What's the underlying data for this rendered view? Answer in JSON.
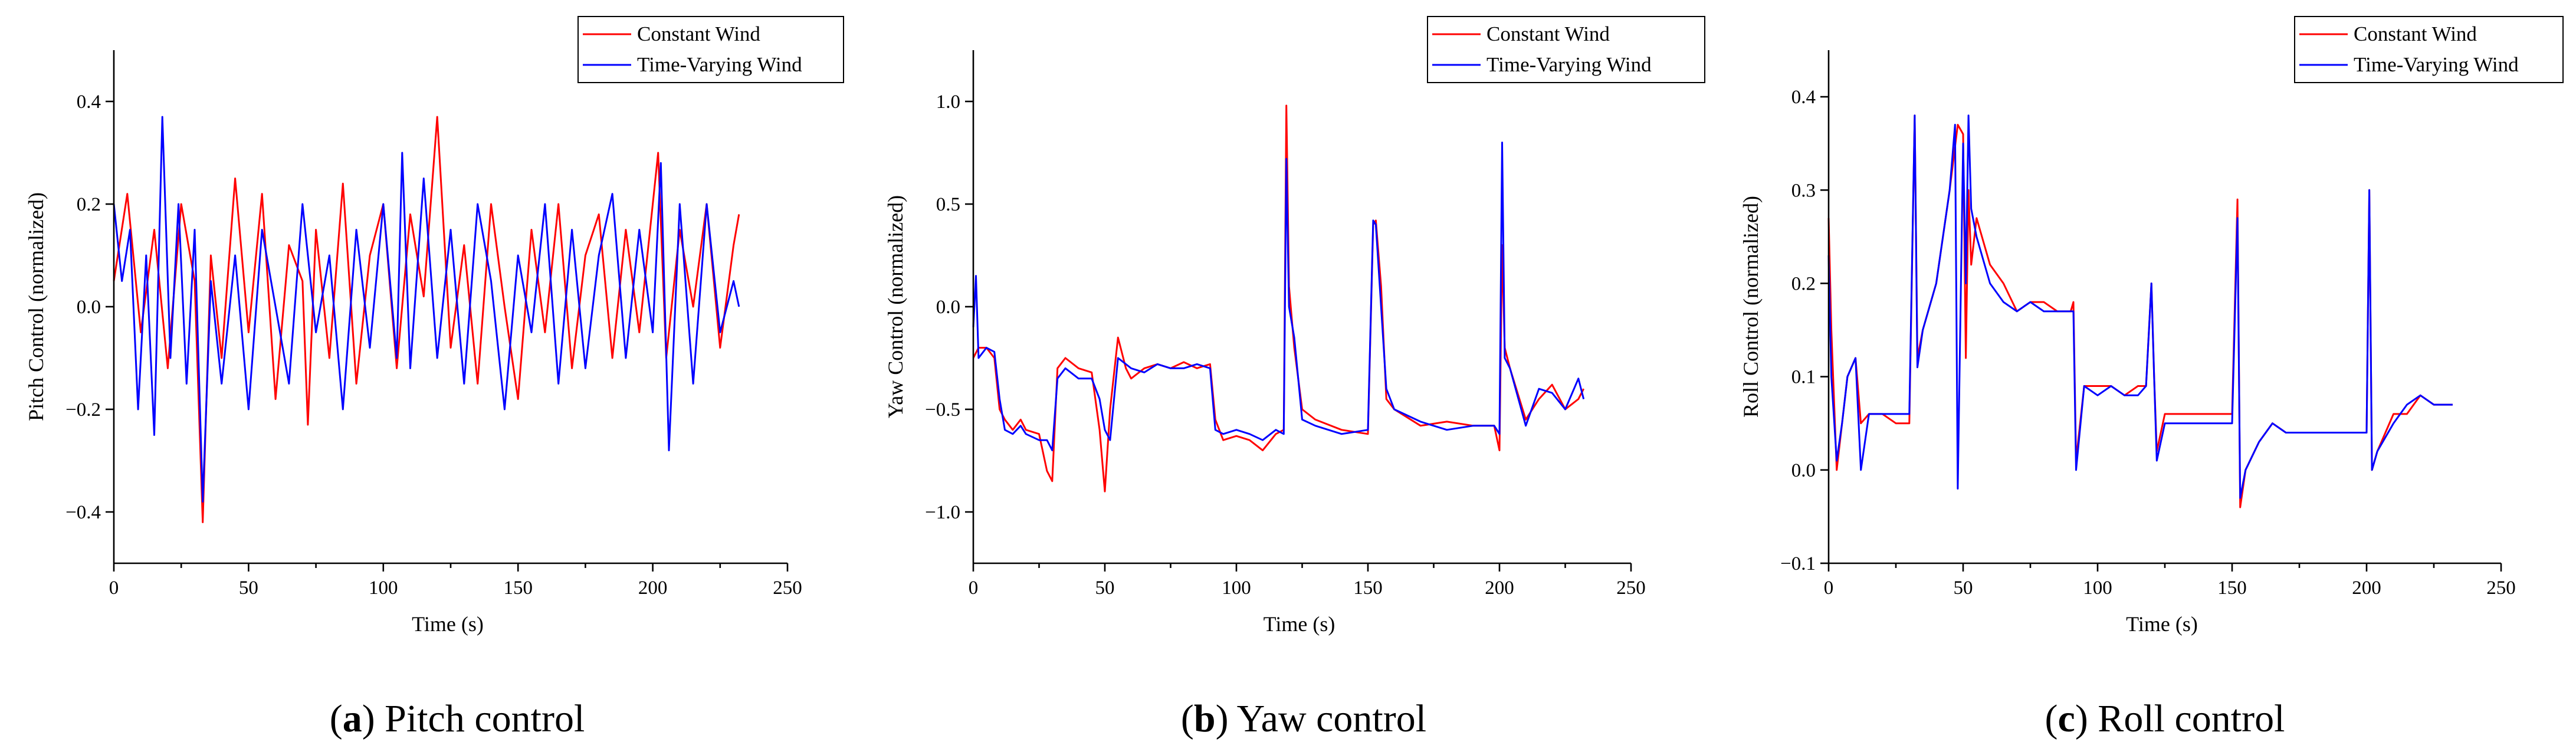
{
  "colors": {
    "constant": "#ff0000",
    "varying": "#0000ff"
  },
  "legend": [
    "Constant Wind",
    "Time-Varying Wind"
  ],
  "panels": [
    {
      "letter": "a",
      "caption_text": "Pitch control"
    },
    {
      "letter": "b",
      "caption_text": "Yaw control"
    },
    {
      "letter": "c",
      "caption_text": "Roll control"
    }
  ],
  "chart_data": [
    {
      "type": "line",
      "xlabel": "Time (s)",
      "ylabel": "Pitch Control (normalized)",
      "xlim": [
        0,
        250
      ],
      "ylim": [
        -0.5,
        0.5
      ],
      "xticks": [
        0,
        50,
        100,
        150,
        200,
        250
      ],
      "yticks": [
        -0.4,
        -0.2,
        0.0,
        0.2,
        0.4
      ],
      "ytick_labels": [
        "−0.4",
        "−0.2",
        "0.0",
        "0.2",
        "0.4"
      ],
      "legend_position": "top-right",
      "series": [
        {
          "name": "Constant Wind",
          "x": [
            0,
            5,
            10,
            15,
            20,
            25,
            30,
            33,
            36,
            40,
            45,
            50,
            55,
            60,
            65,
            70,
            72,
            75,
            80,
            85,
            90,
            95,
            100,
            105,
            110,
            115,
            120,
            125,
            130,
            135,
            140,
            145,
            150,
            155,
            160,
            165,
            170,
            175,
            180,
            185,
            190,
            195,
            200,
            202,
            205,
            210,
            215,
            220,
            225,
            230,
            232
          ],
          "y": [
            0.05,
            0.22,
            -0.05,
            0.15,
            -0.12,
            0.2,
            0.05,
            -0.42,
            0.1,
            -0.1,
            0.25,
            -0.05,
            0.22,
            -0.18,
            0.12,
            0.05,
            -0.23,
            0.15,
            -0.1,
            0.24,
            -0.15,
            0.1,
            0.2,
            -0.12,
            0.18,
            0.02,
            0.37,
            -0.08,
            0.12,
            -0.15,
            0.2,
            0.0,
            -0.18,
            0.15,
            -0.05,
            0.2,
            -0.12,
            0.1,
            0.18,
            -0.1,
            0.15,
            -0.05,
            0.2,
            0.3,
            -0.1,
            0.15,
            0.0,
            0.2,
            -0.08,
            0.12,
            0.18
          ]
        },
        {
          "name": "Time-Varying Wind",
          "x": [
            0,
            3,
            6,
            9,
            12,
            15,
            18,
            21,
            24,
            27,
            30,
            33,
            36,
            40,
            45,
            50,
            55,
            60,
            65,
            70,
            75,
            80,
            85,
            90,
            95,
            100,
            105,
            107,
            110,
            115,
            120,
            125,
            130,
            135,
            140,
            145,
            150,
            155,
            160,
            165,
            170,
            175,
            180,
            185,
            190,
            195,
            200,
            203,
            206,
            210,
            215,
            220,
            225,
            230,
            232
          ],
          "y": [
            0.2,
            0.05,
            0.15,
            -0.2,
            0.1,
            -0.25,
            0.37,
            -0.1,
            0.2,
            -0.15,
            0.15,
            -0.38,
            0.05,
            -0.15,
            0.1,
            -0.2,
            0.15,
            0.0,
            -0.15,
            0.2,
            -0.05,
            0.1,
            -0.2,
            0.15,
            -0.08,
            0.2,
            -0.1,
            0.3,
            -0.12,
            0.25,
            -0.1,
            0.15,
            -0.15,
            0.2,
            0.05,
            -0.2,
            0.1,
            -0.05,
            0.2,
            -0.15,
            0.15,
            -0.12,
            0.1,
            0.22,
            -0.1,
            0.15,
            -0.05,
            0.28,
            -0.28,
            0.2,
            -0.15,
            0.2,
            -0.05,
            0.05,
            0.0
          ]
        }
      ]
    },
    {
      "type": "line",
      "xlabel": "Time (s)",
      "ylabel": "Yaw Control (normalized)",
      "xlim": [
        0,
        250
      ],
      "ylim": [
        -1.25,
        1.25
      ],
      "xticks": [
        0,
        50,
        100,
        150,
        200,
        250
      ],
      "yticks": [
        -1.0,
        -0.5,
        0.0,
        0.5,
        1.0
      ],
      "ytick_labels": [
        "−1.0",
        "−0.5",
        "0.0",
        "0.5",
        "1.0"
      ],
      "legend_position": "top-right",
      "series": [
        {
          "name": "Constant Wind",
          "x": [
            0,
            2,
            5,
            8,
            10,
            12,
            15,
            18,
            20,
            25,
            28,
            30,
            32,
            35,
            40,
            45,
            48,
            50,
            52,
            55,
            58,
            60,
            65,
            70,
            75,
            80,
            85,
            90,
            92,
            95,
            100,
            105,
            110,
            115,
            118,
            119,
            120,
            122,
            125,
            130,
            140,
            150,
            152,
            153,
            155,
            157,
            160,
            170,
            180,
            190,
            198,
            200,
            201,
            202,
            204,
            210,
            215,
            220,
            225,
            230,
            232
          ],
          "y": [
            -0.25,
            -0.2,
            -0.2,
            -0.25,
            -0.5,
            -0.55,
            -0.6,
            -0.55,
            -0.6,
            -0.62,
            -0.8,
            -0.85,
            -0.3,
            -0.25,
            -0.3,
            -0.32,
            -0.6,
            -0.9,
            -0.5,
            -0.15,
            -0.3,
            -0.35,
            -0.3,
            -0.28,
            -0.3,
            -0.27,
            -0.3,
            -0.28,
            -0.55,
            -0.65,
            -0.63,
            -0.65,
            -0.7,
            -0.62,
            -0.6,
            0.98,
            0.1,
            -0.2,
            -0.5,
            -0.55,
            -0.6,
            -0.62,
            0.4,
            0.42,
            0.1,
            -0.45,
            -0.5,
            -0.58,
            -0.56,
            -0.58,
            -0.58,
            -0.7,
            0.3,
            -0.2,
            -0.3,
            -0.55,
            -0.45,
            -0.38,
            -0.5,
            -0.45,
            -0.4
          ]
        },
        {
          "name": "Time-Varying Wind",
          "x": [
            0,
            1,
            2,
            5,
            8,
            10,
            12,
            15,
            18,
            20,
            25,
            28,
            30,
            32,
            35,
            40,
            45,
            48,
            50,
            52,
            55,
            58,
            60,
            65,
            70,
            75,
            80,
            85,
            90,
            92,
            95,
            100,
            105,
            110,
            115,
            118,
            119,
            120,
            122,
            125,
            130,
            140,
            150,
            152,
            153,
            155,
            157,
            160,
            170,
            180,
            190,
            198,
            200,
            201,
            202,
            204,
            210,
            215,
            220,
            225,
            230,
            232
          ],
          "y": [
            -0.1,
            0.15,
            -0.25,
            -0.2,
            -0.22,
            -0.45,
            -0.6,
            -0.62,
            -0.58,
            -0.62,
            -0.65,
            -0.65,
            -0.7,
            -0.35,
            -0.3,
            -0.35,
            -0.35,
            -0.45,
            -0.6,
            -0.65,
            -0.25,
            -0.28,
            -0.3,
            -0.32,
            -0.28,
            -0.3,
            -0.3,
            -0.28,
            -0.3,
            -0.6,
            -0.62,
            -0.6,
            -0.62,
            -0.65,
            -0.6,
            -0.62,
            0.72,
            0.0,
            -0.15,
            -0.55,
            -0.58,
            -0.62,
            -0.6,
            0.42,
            0.4,
            0.0,
            -0.4,
            -0.5,
            -0.56,
            -0.6,
            -0.58,
            -0.58,
            -0.62,
            0.8,
            -0.25,
            -0.3,
            -0.58,
            -0.4,
            -0.42,
            -0.5,
            -0.35,
            -0.45
          ]
        }
      ]
    },
    {
      "type": "line",
      "xlabel": "Time (s)",
      "ylabel": "Roll Control (normalized)",
      "xlim": [
        0,
        250
      ],
      "ylim": [
        -0.1,
        0.45
      ],
      "xticks": [
        0,
        50,
        100,
        150,
        200,
        250
      ],
      "yticks": [
        -0.1,
        0.0,
        0.1,
        0.2,
        0.3,
        0.4
      ],
      "ytick_labels": [
        "−0.1",
        "0.0",
        "0.1",
        "0.2",
        "0.3",
        "0.4"
      ],
      "legend_position": "top-right",
      "series": [
        {
          "name": "Constant Wind",
          "x": [
            0,
            1,
            3,
            5,
            7,
            10,
            12,
            15,
            20,
            25,
            30,
            32,
            33,
            35,
            40,
            45,
            48,
            50,
            51,
            52,
            53,
            55,
            60,
            65,
            70,
            75,
            80,
            85,
            90,
            91,
            92,
            95,
            100,
            105,
            110,
            115,
            118,
            120,
            121,
            122,
            125,
            130,
            140,
            148,
            150,
            152,
            153,
            155,
            160,
            165,
            170,
            180,
            190,
            200,
            201,
            202,
            204,
            210,
            215,
            220,
            225,
            230,
            232
          ],
          "y": [
            0.27,
            0.15,
            0.0,
            0.05,
            0.1,
            0.12,
            0.05,
            0.06,
            0.06,
            0.05,
            0.05,
            0.38,
            0.12,
            0.15,
            0.2,
            0.3,
            0.37,
            0.36,
            0.12,
            0.3,
            0.22,
            0.27,
            0.22,
            0.2,
            0.17,
            0.18,
            0.18,
            0.17,
            0.17,
            0.18,
            0.01,
            0.09,
            0.09,
            0.09,
            0.08,
            0.09,
            0.09,
            0.2,
            0.1,
            0.02,
            0.06,
            0.06,
            0.06,
            0.06,
            0.06,
            0.29,
            -0.04,
            0.0,
            0.03,
            0.05,
            0.04,
            0.04,
            0.04,
            0.04,
            0.3,
            0.0,
            0.02,
            0.06,
            0.06,
            0.08,
            0.07,
            0.07,
            0.07
          ]
        },
        {
          "name": "Time-Varying Wind",
          "x": [
            0,
            1,
            3,
            5,
            7,
            10,
            12,
            15,
            20,
            25,
            30,
            32,
            33,
            35,
            40,
            45,
            47,
            48,
            50,
            51,
            52,
            53,
            55,
            60,
            65,
            70,
            75,
            80,
            85,
            90,
            91,
            92,
            95,
            100,
            105,
            110,
            115,
            118,
            120,
            121,
            122,
            125,
            130,
            140,
            148,
            150,
            152,
            153,
            155,
            160,
            165,
            170,
            180,
            190,
            200,
            201,
            202,
            204,
            210,
            215,
            220,
            225,
            230,
            232
          ],
          "y": [
            0.23,
            0.1,
            0.01,
            0.05,
            0.1,
            0.12,
            0.0,
            0.06,
            0.06,
            0.06,
            0.06,
            0.38,
            0.11,
            0.15,
            0.2,
            0.3,
            0.37,
            -0.02,
            0.35,
            0.2,
            0.38,
            0.28,
            0.25,
            0.2,
            0.18,
            0.17,
            0.18,
            0.17,
            0.17,
            0.17,
            0.17,
            0.0,
            0.09,
            0.08,
            0.09,
            0.08,
            0.08,
            0.09,
            0.2,
            0.1,
            0.01,
            0.05,
            0.05,
            0.05,
            0.05,
            0.05,
            0.27,
            -0.03,
            0.0,
            0.03,
            0.05,
            0.04,
            0.04,
            0.04,
            0.04,
            0.3,
            0.0,
            0.02,
            0.05,
            0.07,
            0.08,
            0.07,
            0.07,
            0.07
          ]
        }
      ]
    }
  ]
}
